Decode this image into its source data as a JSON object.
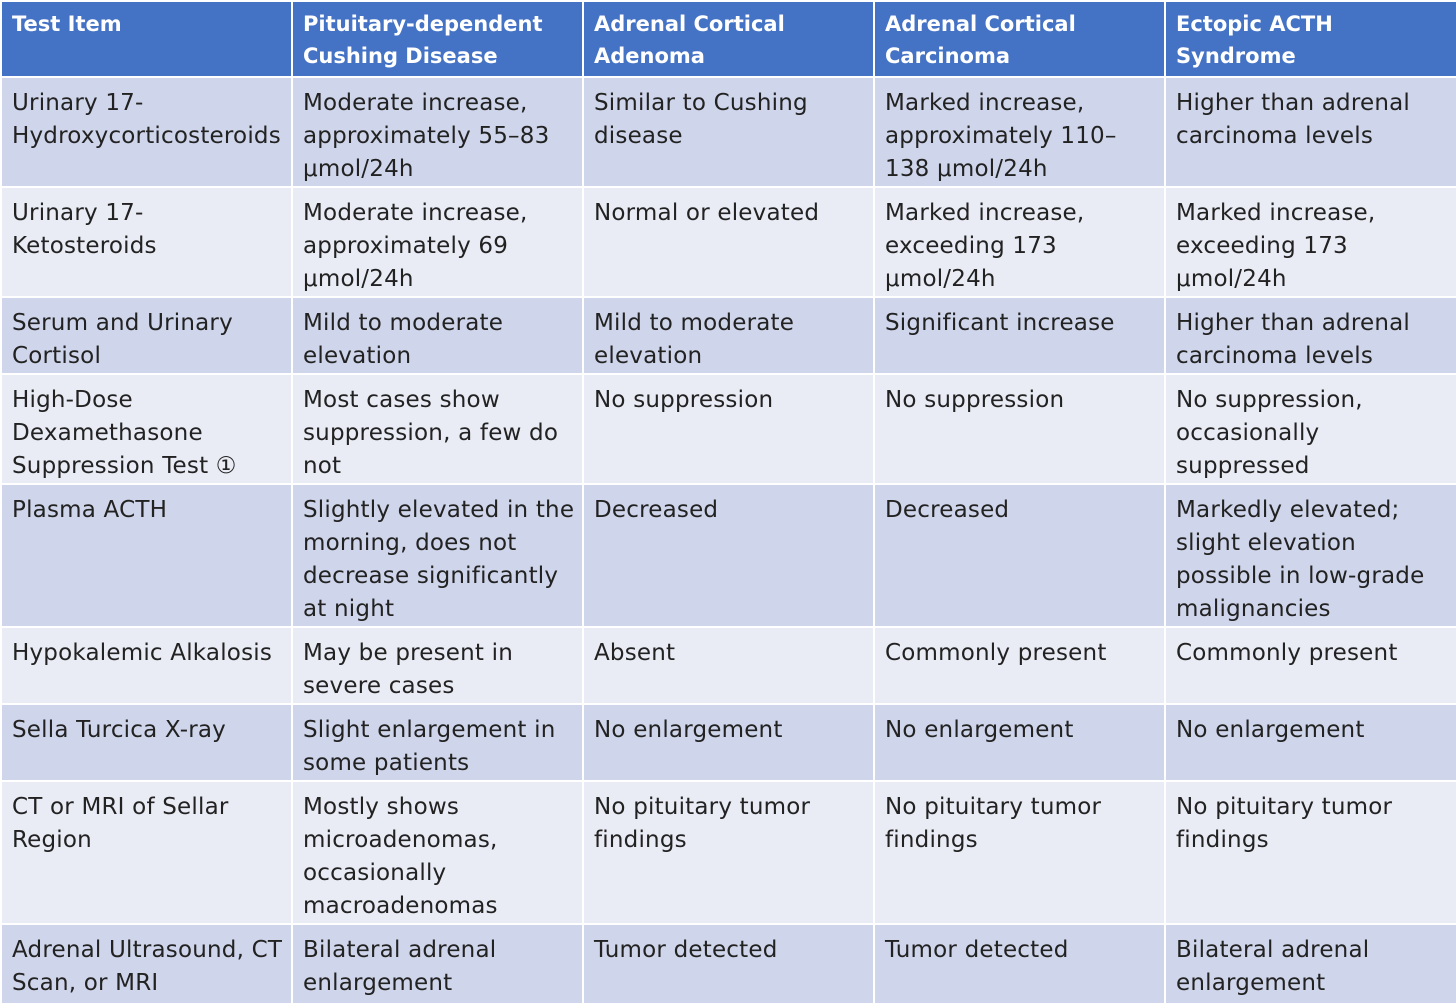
{
  "table": {
    "headers": [
      "Test Item",
      "Pituitary-dependent Cushing Disease",
      "Adrenal Cortical Adenoma",
      "Adrenal Cortical Carcinoma",
      "Ectopic ACTH Syndrome"
    ],
    "rows": [
      [
        "Urinary 17-Hydroxycorticosteroids",
        "Moderate increase, approximately 55–83 μmol/24h",
        "Similar to Cushing disease",
        "Marked increase, approximately 110–138 μmol/24h",
        "Higher than adrenal carcinoma levels"
      ],
      [
        "Urinary 17-Ketosteroids",
        "Moderate increase, approximately 69 μmol/24h",
        "Normal or elevated",
        "Marked increase, exceeding 173 μmol/24h",
        "Marked increase, exceeding 173 μmol/24h"
      ],
      [
        "Serum and Urinary Cortisol",
        "Mild to moderate elevation",
        "Mild to moderate elevation",
        "Significant increase",
        "Higher than adrenal carcinoma levels"
      ],
      [
        "High-Dose Dexamethasone Suppression Test ①",
        "Most cases show suppression, a few do not",
        "No suppression",
        "No suppression",
        "No suppression, occasionally suppressed"
      ],
      [
        "Plasma ACTH",
        "Slightly elevated in the morning, does not decrease significantly at night",
        "Decreased",
        "Decreased",
        "Markedly elevated; slight elevation possible in low-grade malignancies"
      ],
      [
        "Hypokalemic Alkalosis",
        "May be present in severe cases",
        "Absent",
        "Commonly present",
        "Commonly present"
      ],
      [
        "Sella Turcica X-ray",
        "Slight enlargement in some patients",
        "No enlargement",
        "No enlargement",
        "No enlargement"
      ],
      [
        "CT or MRI of Sellar Region",
        "Mostly shows microadenomas, occasionally macroadenomas",
        "No pituitary tumor findings",
        "No pituitary tumor findings",
        "No pituitary tumor findings"
      ],
      [
        "Adrenal Ultrasound, CT Scan, or MRI",
        "Bilateral adrenal enlargement",
        "Tumor detected",
        "Tumor detected",
        "Bilateral adrenal enlargement"
      ]
    ]
  },
  "colors": {
    "header_bg": "#4472C4",
    "row_odd_bg": "#CFD5EA",
    "row_even_bg": "#E9EBF5",
    "border": "#FFFFFF"
  }
}
